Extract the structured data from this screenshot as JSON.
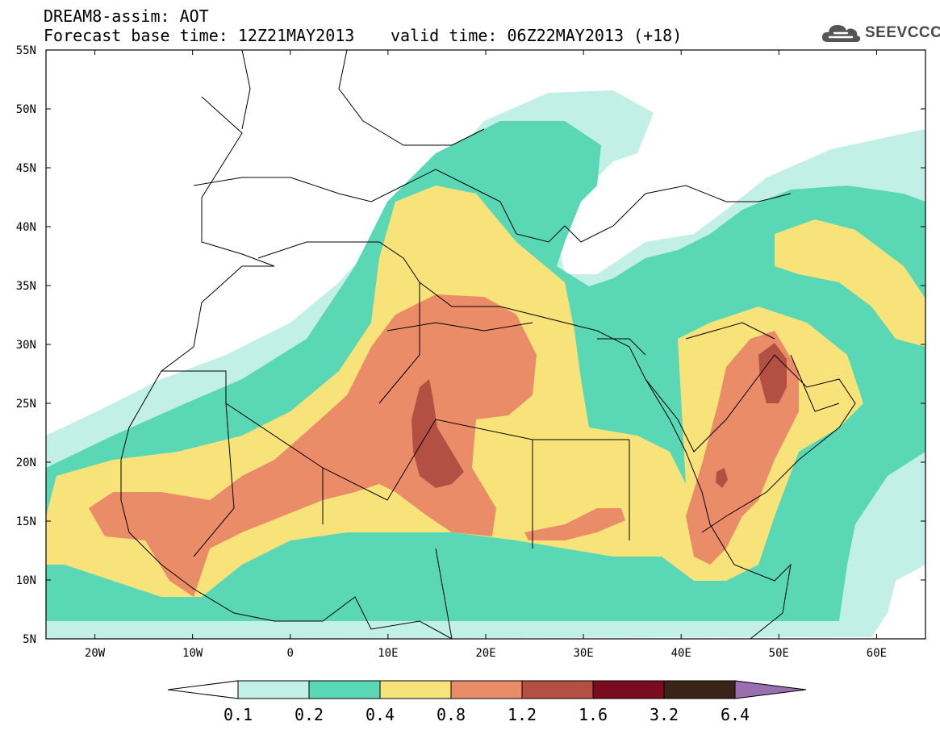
{
  "header": {
    "line1": "DREAM8-assim: AOT",
    "line2_base": "Forecast base time: 12Z21MAY2013",
    "line2_valid": "valid time: 06Z22MAY2013 (+18)"
  },
  "logo": {
    "text": "SEEVCCC",
    "icon": "cloud-logo-icon"
  },
  "map": {
    "lon_range": [
      -25,
      65
    ],
    "lat_range": [
      5,
      55
    ],
    "lon_ticks": [
      {
        "value": -20,
        "label": "20W"
      },
      {
        "value": -10,
        "label": "10W"
      },
      {
        "value": 0,
        "label": "0"
      },
      {
        "value": 10,
        "label": "10E"
      },
      {
        "value": 20,
        "label": "20E"
      },
      {
        "value": 30,
        "label": "30E"
      },
      {
        "value": 40,
        "label": "40E"
      },
      {
        "value": 50,
        "label": "50E"
      },
      {
        "value": 60,
        "label": "60E"
      }
    ],
    "lat_ticks": [
      {
        "value": 55,
        "label": "55N"
      },
      {
        "value": 50,
        "label": "50N"
      },
      {
        "value": 45,
        "label": "45N"
      },
      {
        "value": 40,
        "label": "40N"
      },
      {
        "value": 35,
        "label": "35N"
      },
      {
        "value": 30,
        "label": "30N"
      },
      {
        "value": 25,
        "label": "25N"
      },
      {
        "value": 20,
        "label": "20N"
      },
      {
        "value": 15,
        "label": "15N"
      },
      {
        "value": 10,
        "label": "10N"
      },
      {
        "value": 5,
        "label": "5N"
      }
    ]
  },
  "colorbar": {
    "under_color": "#ffffff",
    "over_color": "#9a6fb0",
    "colors": [
      "#c2f0e6",
      "#5ad8b6",
      "#f8e37a",
      "#ea8c68",
      "#b44f43",
      "#7a0c22",
      "#3b2417"
    ],
    "labels": [
      "0.1",
      "0.2",
      "0.4",
      "0.8",
      "1.2",
      "1.6",
      "3.2",
      "6.4"
    ]
  }
}
